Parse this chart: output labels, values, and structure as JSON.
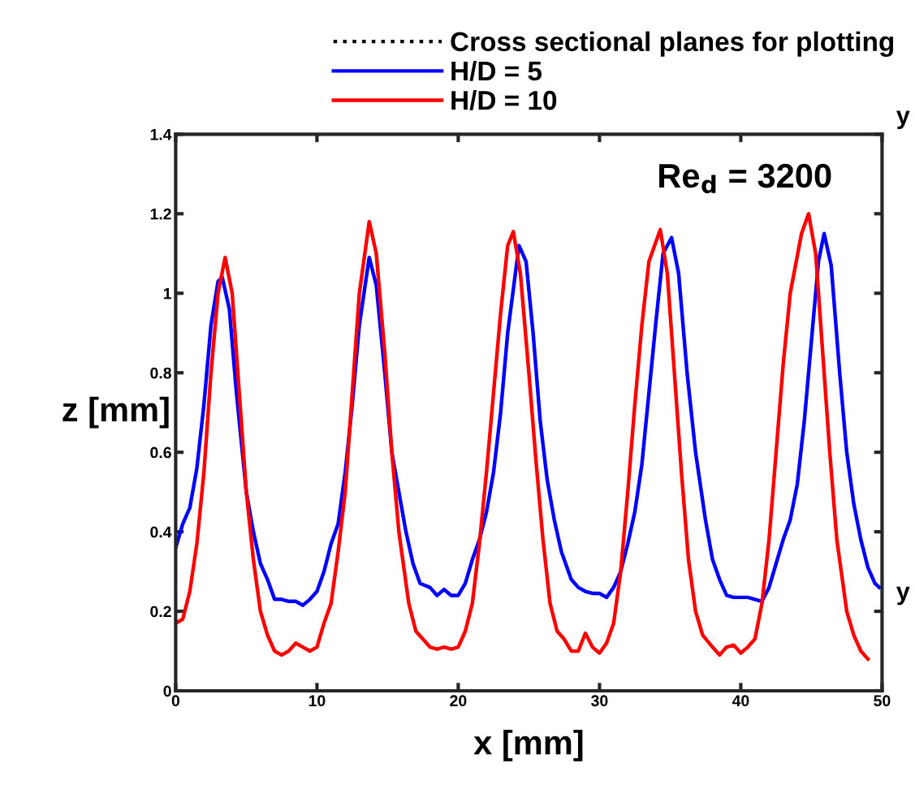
{
  "chart_data": {
    "type": "line",
    "xlabel": "x [mm]",
    "ylabel": "z [mm]",
    "xlim": [
      0,
      50
    ],
    "xticks": [
      0,
      10,
      20,
      30,
      40,
      50
    ],
    "ylim": [
      0,
      1.4
    ],
    "yticks": [
      0,
      0.2,
      0.4,
      0.6,
      0.8,
      1,
      1.2,
      1.4
    ],
    "grid": false,
    "legend": "top",
    "line_style": "solid",
    "marker": "none",
    "annotations": [
      "Re$_{d}$ = 3200",
      "y",
      "y"
    ],
    "series": [
      {
        "name": "Cross sectional planes for plotting",
        "color": "#000000",
        "line_style": "dotted"
      },
      {
        "name": "H/D = 5",
        "color": "#0000ff",
        "x": [
          0,
          0.5,
          1,
          1.5,
          2,
          2.5,
          3,
          3.3,
          3.8,
          4.3,
          5,
          5.5,
          6,
          6.5,
          7,
          7.5,
          8,
          8.5,
          9,
          9.5,
          10,
          10.5,
          11,
          11.5,
          12,
          12.5,
          13,
          13.7,
          14.2,
          14.8,
          15.3,
          15.8,
          16.3,
          16.8,
          17.3,
          18,
          18.5,
          19,
          19.5,
          20,
          20.5,
          21,
          21.5,
          22,
          22.5,
          23,
          23.5,
          24.3,
          24.8,
          25.3,
          25.8,
          26.3,
          26.8,
          27.3,
          28,
          28.5,
          29,
          29.5,
          30,
          30.5,
          31,
          31.5,
          32,
          32.5,
          33,
          33.5,
          34,
          34.5,
          35.1,
          35.6,
          36.2,
          36.8,
          37.5,
          38,
          38.5,
          39,
          39.5,
          40,
          40.5,
          41,
          41.5,
          42,
          42.5,
          43,
          43.5,
          44,
          44.5,
          45,
          45.5,
          45.9,
          46.4,
          47,
          47.5,
          48,
          48.5,
          49,
          49.5,
          49.8
        ],
        "values": [
          0.36,
          0.42,
          0.46,
          0.56,
          0.72,
          0.92,
          1.03,
          1.04,
          0.96,
          0.75,
          0.5,
          0.4,
          0.32,
          0.28,
          0.23,
          0.23,
          0.225,
          0.225,
          0.215,
          0.23,
          0.25,
          0.3,
          0.37,
          0.42,
          0.55,
          0.72,
          0.92,
          1.09,
          1.02,
          0.8,
          0.6,
          0.5,
          0.4,
          0.32,
          0.27,
          0.26,
          0.24,
          0.255,
          0.24,
          0.24,
          0.27,
          0.33,
          0.38,
          0.45,
          0.55,
          0.7,
          0.9,
          1.12,
          1.08,
          0.9,
          0.68,
          0.53,
          0.43,
          0.35,
          0.28,
          0.26,
          0.25,
          0.245,
          0.245,
          0.235,
          0.26,
          0.3,
          0.37,
          0.45,
          0.57,
          0.75,
          0.93,
          1.1,
          1.14,
          1.05,
          0.8,
          0.6,
          0.43,
          0.33,
          0.28,
          0.24,
          0.235,
          0.235,
          0.235,
          0.23,
          0.225,
          0.26,
          0.32,
          0.38,
          0.43,
          0.52,
          0.68,
          0.88,
          1.08,
          1.15,
          1.07,
          0.8,
          0.6,
          0.47,
          0.38,
          0.31,
          0.27,
          0.26
        ]
      },
      {
        "name": "H/D = 10",
        "color": "#ff0000",
        "x": [
          0,
          0.5,
          1,
          1.5,
          2,
          2.5,
          3,
          3.5,
          4,
          4.5,
          5,
          5.5,
          6,
          6.5,
          7,
          7.5,
          8,
          8.5,
          9,
          9.5,
          10,
          10.5,
          11,
          11.5,
          12,
          12.5,
          13,
          13.7,
          14.2,
          14.8,
          15.3,
          15.8,
          16.5,
          17,
          17.5,
          18,
          18.5,
          19,
          19.5,
          20,
          20.5,
          21,
          21.5,
          22,
          22.5,
          23,
          23.5,
          23.9,
          24.4,
          25,
          25.5,
          26,
          26.5,
          27,
          27.5,
          28,
          28.5,
          29,
          29.5,
          30,
          30.5,
          31,
          31.5,
          32,
          32.5,
          33,
          33.5,
          34.3,
          34.8,
          35.3,
          35.8,
          36.3,
          36.8,
          37.3,
          38,
          38.5,
          39,
          39.5,
          40,
          40.5,
          41,
          41.5,
          42,
          42.5,
          43,
          43.5,
          44.3,
          44.8,
          45.3,
          45.8,
          46.3,
          46.8,
          47.5,
          48,
          48.5,
          49
        ],
        "values": [
          0.17,
          0.18,
          0.25,
          0.37,
          0.55,
          0.8,
          1.0,
          1.09,
          1.0,
          0.75,
          0.5,
          0.33,
          0.2,
          0.14,
          0.1,
          0.09,
          0.1,
          0.12,
          0.11,
          0.1,
          0.11,
          0.17,
          0.22,
          0.35,
          0.5,
          0.75,
          1.0,
          1.18,
          1.1,
          0.85,
          0.6,
          0.4,
          0.22,
          0.15,
          0.13,
          0.11,
          0.105,
          0.11,
          0.105,
          0.11,
          0.15,
          0.22,
          0.37,
          0.55,
          0.75,
          0.95,
          1.12,
          1.155,
          1.05,
          0.8,
          0.58,
          0.38,
          0.22,
          0.15,
          0.13,
          0.1,
          0.1,
          0.145,
          0.11,
          0.095,
          0.12,
          0.17,
          0.3,
          0.5,
          0.72,
          0.92,
          1.08,
          1.16,
          1.05,
          0.8,
          0.55,
          0.33,
          0.2,
          0.14,
          0.11,
          0.09,
          0.11,
          0.115,
          0.095,
          0.11,
          0.13,
          0.22,
          0.38,
          0.6,
          0.82,
          1.0,
          1.15,
          1.2,
          1.1,
          0.85,
          0.6,
          0.38,
          0.2,
          0.14,
          0.1,
          0.08
        ]
      }
    ]
  }
}
